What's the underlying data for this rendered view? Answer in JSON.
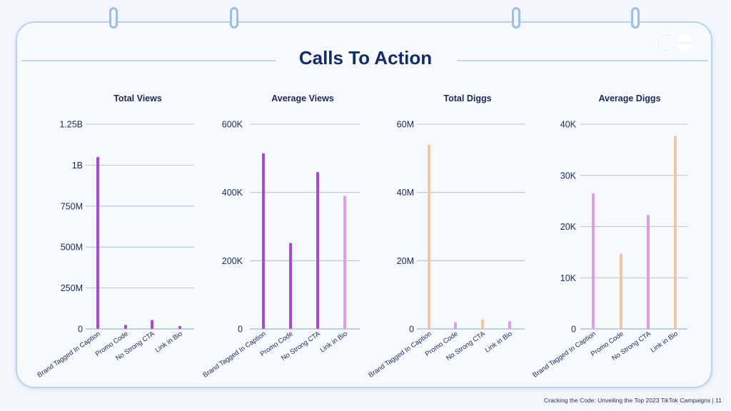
{
  "page": {
    "title": "Calls To Action",
    "footer": "Cracking the Code: Unveiling the Top 2023 TikTok Campaigns | 11"
  },
  "colors": {
    "purple": "#a64bd3",
    "lilac": "#dd9ee9",
    "peach": "#f4c4a6",
    "grid": "#9fb6d2",
    "text": "#1b2a55"
  },
  "chart_data": [
    {
      "type": "bar",
      "title": "Total Views",
      "categories": [
        "Brand Tagged In Caption",
        "Promo Code",
        "No Strong CTA",
        "Link in Bio"
      ],
      "values": [
        1050000000,
        25000000,
        55000000,
        18000000
      ],
      "ylim": [
        0,
        1250000000
      ],
      "ticks": [
        0,
        250000000,
        500000000,
        750000000,
        1000000000,
        1250000000
      ],
      "tick_labels": [
        "0",
        "250M",
        "500M",
        "750M",
        "1B",
        "1.25B"
      ],
      "bar_colors": [
        "purple",
        "purple",
        "purple",
        "purple"
      ],
      "grid": true
    },
    {
      "type": "bar",
      "title": "Average Views",
      "categories": [
        "Brand Tagged In Caption",
        "Promo Code",
        "No Strong CTA",
        "Link in Bio"
      ],
      "values": [
        515000,
        252000,
        460000,
        390000
      ],
      "ylim": [
        0,
        600000
      ],
      "ticks": [
        0,
        200000,
        400000,
        600000
      ],
      "tick_labels": [
        "0",
        "200K",
        "400K",
        "600K"
      ],
      "bar_colors": [
        "purple",
        "purple",
        "purple",
        "lilac"
      ],
      "grid": true
    },
    {
      "type": "bar",
      "title": "Total Diggs",
      "categories": [
        "Brand Tagged In Caption",
        "Promo Code",
        "No Strong CTA",
        "Link in Bio"
      ],
      "values": [
        54000000,
        2000000,
        2800000,
        2300000
      ],
      "ylim": [
        0,
        60000000
      ],
      "ticks": [
        0,
        20000000,
        40000000,
        60000000
      ],
      "tick_labels": [
        "0",
        "20M",
        "40M",
        "60M"
      ],
      "bar_colors": [
        "peach",
        "lilac",
        "peach",
        "lilac"
      ],
      "grid": true
    },
    {
      "type": "bar",
      "title": "Average Diggs",
      "categories": [
        "Brand Tagged In Caption",
        "Promo Code",
        "No Strong CTA",
        "Link in Bio"
      ],
      "values": [
        26500,
        14700,
        22300,
        37700
      ],
      "ylim": [
        0,
        40000
      ],
      "ticks": [
        0,
        10000,
        20000,
        30000,
        40000
      ],
      "tick_labels": [
        "0",
        "10K",
        "20K",
        "30K",
        "40K"
      ],
      "bar_colors": [
        "lilac",
        "peach",
        "lilac",
        "peach"
      ],
      "grid": true
    }
  ]
}
